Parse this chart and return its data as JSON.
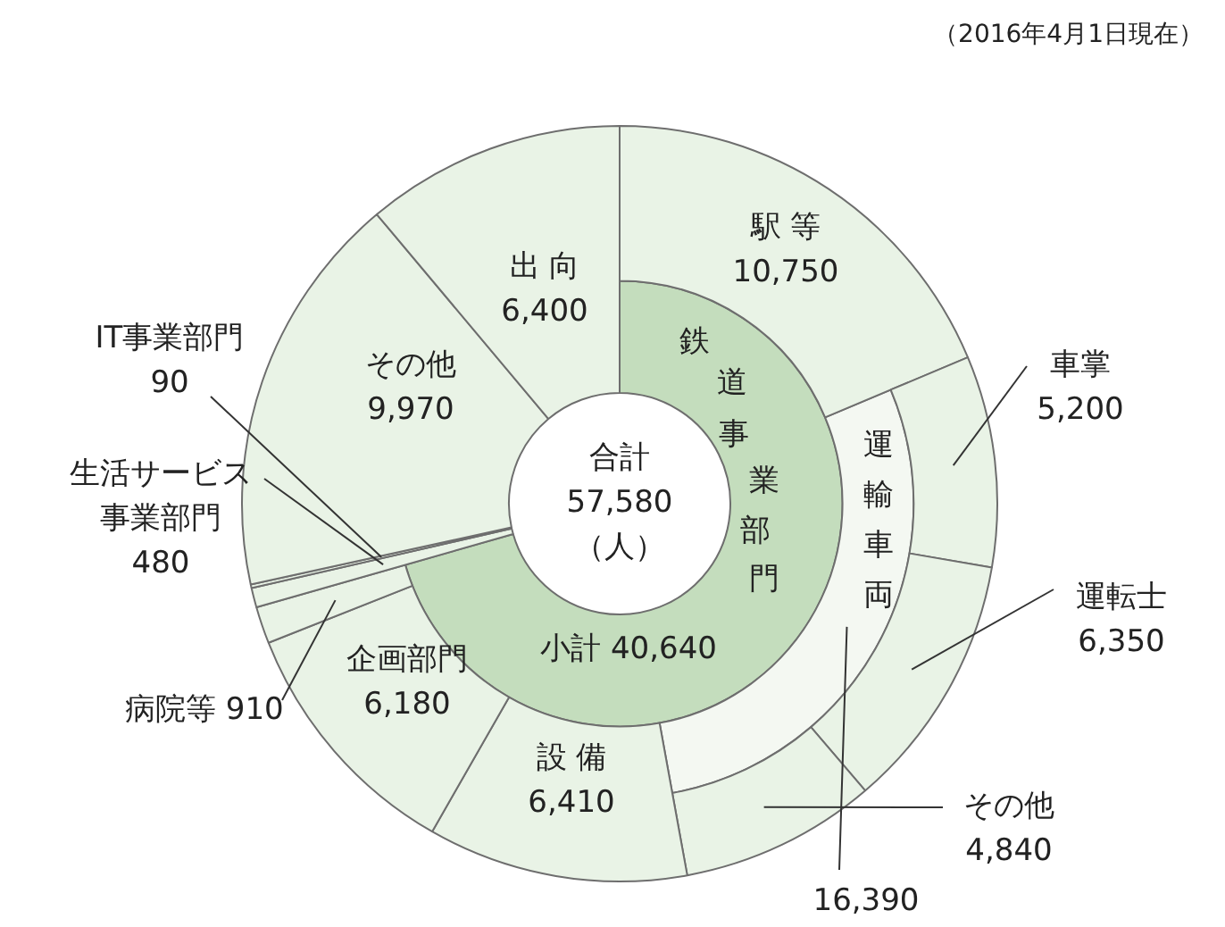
{
  "chart_data": {
    "type": "donut",
    "legend": false,
    "annotations": [
      "（2016年4月1日現在）",
      "合計\n57,580\n（人）"
    ],
    "categories": [
      "駅 等",
      "車掌",
      "運転士",
      "その他",
      "設 備",
      "企画部門",
      "病院等",
      "生活サービス事業部門",
      "IT事業部門",
      "その他",
      "出 向"
    ],
    "series": [
      {
        "color": "#e9f3e6",
        "values": [
          10750,
          5200,
          6350,
          4840,
          6410,
          6180,
          910,
          480,
          90,
          9970,
          6400
        ],
        "value_labels": [
          "10,750",
          "5,200",
          "6,350",
          "4,840",
          "6,410",
          "6,180",
          "910",
          "480",
          "90",
          "9,970",
          "6,400"
        ]
      },
      {
        "name": "運輸車両",
        "color": "#f4f8f2",
        "values": [
          null,
          16390,
          null,
          null,
          null,
          null,
          null,
          null,
          null,
          null,
          null
        ],
        "value_labels": [
          null,
          "16,390",
          null,
          null,
          null,
          null,
          null,
          null,
          null,
          null,
          null
        ]
      },
      {
        "name": "鉄道事業部門",
        "color": "#c4ddbd",
        "values": [
          40640,
          null,
          null,
          null,
          null,
          null,
          null,
          null,
          null,
          null,
          null
        ],
        "value_labels": [
          "小計 40,640",
          null,
          null,
          null,
          null,
          null,
          null,
          null,
          null,
          null,
          null
        ]
      }
    ]
  }
}
